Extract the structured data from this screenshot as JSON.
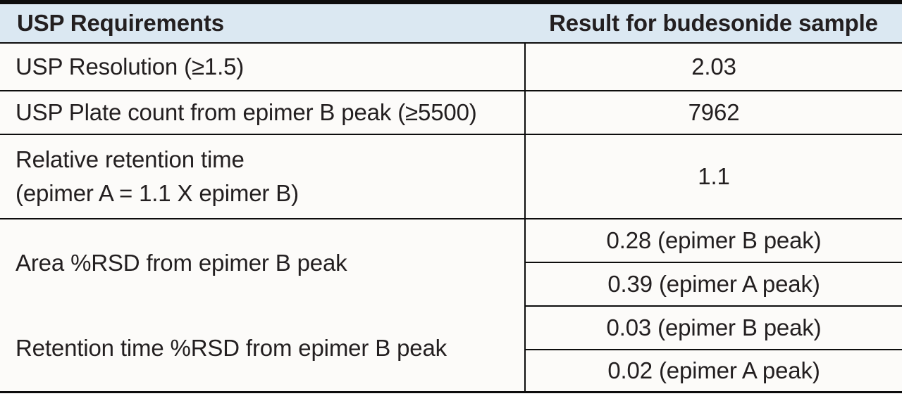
{
  "table": {
    "columns": [
      {
        "label": "USP Requirements"
      },
      {
        "label": "Result for budesonide sample"
      }
    ],
    "rows": [
      {
        "requirement": "USP Resolution (≥1.5)",
        "results": [
          "2.03"
        ]
      },
      {
        "requirement": "USP Plate count from epimer B peak (≥5500)",
        "results": [
          "7962"
        ]
      },
      {
        "requirement": "Relative retention time\n(epimer A = 1.1 X epimer B)",
        "results": [
          "1.1"
        ]
      },
      {
        "requirement": "Area %RSD from epimer B peak",
        "results": [
          "0.28 (epimer B peak)",
          "0.39 (epimer A peak)"
        ]
      },
      {
        "requirement": "Retention time %RSD from epimer B peak",
        "results": [
          "0.03 (epimer B peak)",
          "0.02 (epimer A peak)"
        ]
      }
    ],
    "colors": {
      "header_bg": "#dbe8f2",
      "border": "#0d0d0d",
      "text": "#231f20",
      "cell_bg": "#fcfbf9"
    }
  }
}
